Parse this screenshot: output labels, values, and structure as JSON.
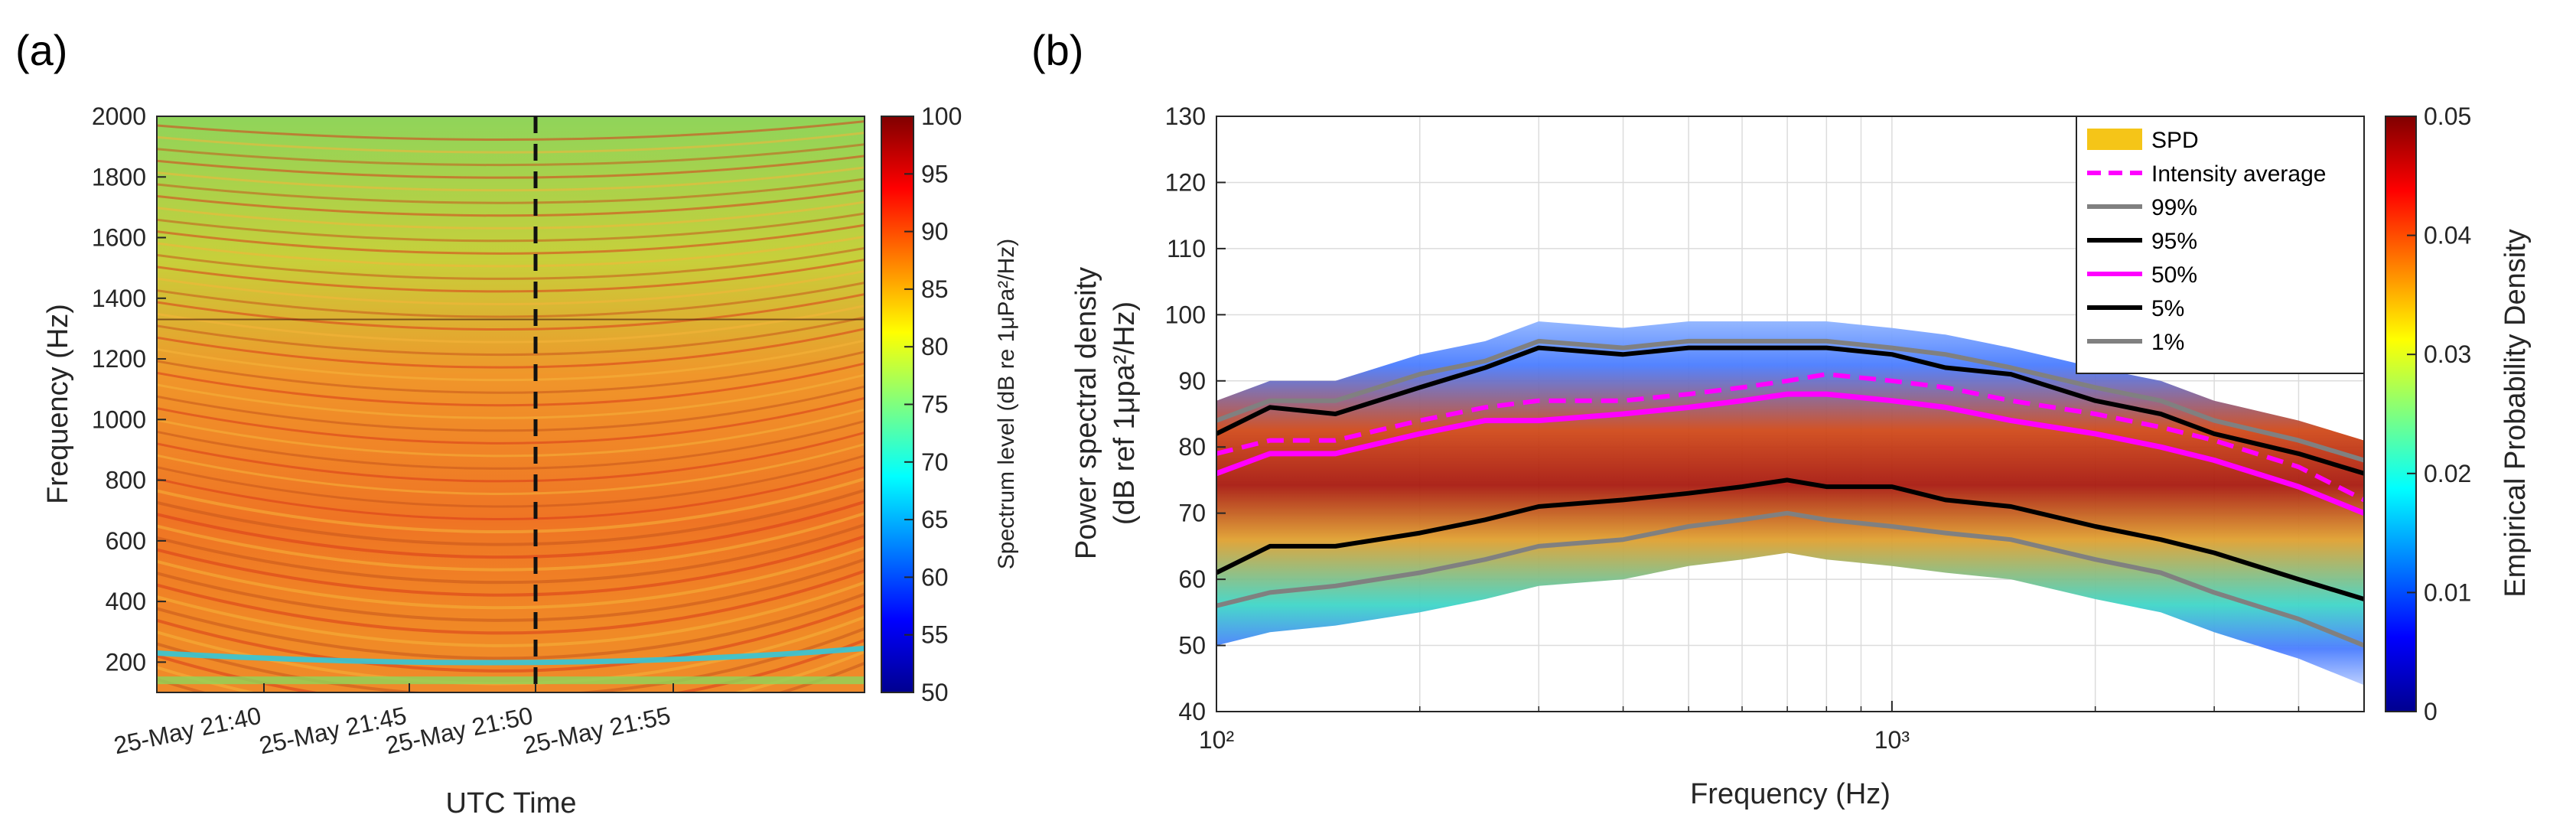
{
  "panels": {
    "a_label": "(a)",
    "b_label": "(b)"
  },
  "chart_data": [
    {
      "type": "heatmap",
      "title": "",
      "xlabel": "UTC Time",
      "ylabel": "Frequency (Hz)",
      "x_tick_labels": [
        "25-May 21:40",
        "25-May 21:45",
        "25-May 21:50",
        "25-May 21:55"
      ],
      "y_ticks": [
        200,
        400,
        600,
        800,
        1000,
        1200,
        1400,
        1600,
        1800,
        2000
      ],
      "ylim": [
        100,
        2000
      ],
      "dashed_vertical_line_at": "25-May 21:50",
      "colorbar": {
        "label": "Spectrum level (dB re 1μPa²/Hz)",
        "ticks": [
          50,
          55,
          60,
          65,
          70,
          75,
          80,
          85,
          90,
          95,
          100
        ],
        "range": [
          50,
          100
        ]
      },
      "description_levels": {
        "low_freq_band_db": 80,
        "mid_band_db": 90,
        "high_band_db": 80
      }
    },
    {
      "type": "line",
      "title": "",
      "xlabel": "Frequency (Hz)",
      "ylabel_line1": "Power spectral density",
      "ylabel_line2": "(dB ref 1μpa²/Hz)",
      "x_scale": "log",
      "xlim": [
        100,
        5000
      ],
      "x_tick_labels": [
        "10²",
        "10³"
      ],
      "ylim": [
        40,
        130
      ],
      "y_ticks": [
        40,
        50,
        60,
        70,
        80,
        90,
        100,
        110,
        120,
        130
      ],
      "grid": true,
      "legend_position": "top-right",
      "colorbar": {
        "label": "Empirical Probability Density",
        "ticks": [
          "0",
          "0.01",
          "0.02",
          "0.03",
          "0.04",
          "0.05"
        ],
        "range": [
          0,
          0.05
        ]
      },
      "legend": [
        {
          "label": "SPD",
          "color": "#f5c518",
          "style": "patch"
        },
        {
          "label": "Intensity average",
          "color": "#ff00ff",
          "style": "dashed"
        },
        {
          "label": "99%",
          "color": "#808080",
          "style": "solid"
        },
        {
          "label": "95%",
          "color": "#000000",
          "style": "solid"
        },
        {
          "label": "50%",
          "color": "#ff00ff",
          "style": "solid"
        },
        {
          "label": "5%",
          "color": "#000000",
          "style": "solid"
        },
        {
          "label": "1%",
          "color": "#808080",
          "style": "solid"
        }
      ],
      "x": [
        100,
        120,
        150,
        200,
        250,
        300,
        400,
        500,
        600,
        700,
        800,
        1000,
        1200,
        1500,
        2000,
        2500,
        3000,
        4000,
        5000
      ],
      "series": [
        {
          "name": "99%",
          "color": "#808080",
          "values": [
            84,
            87,
            87,
            91,
            93,
            96,
            95,
            96,
            96,
            96,
            96,
            95,
            94,
            92,
            89,
            87,
            84,
            81,
            78
          ]
        },
        {
          "name": "95%",
          "color": "#000000",
          "values": [
            82,
            86,
            85,
            89,
            92,
            95,
            94,
            95,
            95,
            95,
            95,
            94,
            92,
            91,
            87,
            85,
            82,
            79,
            76
          ]
        },
        {
          "name": "Intensity average",
          "color": "#ff00ff",
          "values": [
            79,
            81,
            81,
            84,
            86,
            87,
            87,
            88,
            89,
            90,
            91,
            90,
            89,
            87,
            85,
            83,
            81,
            77,
            72
          ]
        },
        {
          "name": "50%",
          "color": "#ff00ff",
          "values": [
            76,
            79,
            79,
            82,
            84,
            84,
            85,
            86,
            87,
            88,
            88,
            87,
            86,
            84,
            82,
            80,
            78,
            74,
            70
          ]
        },
        {
          "name": "5%",
          "color": "#000000",
          "values": [
            61,
            65,
            65,
            67,
            69,
            71,
            72,
            73,
            74,
            75,
            74,
            74,
            72,
            71,
            68,
            66,
            64,
            60,
            57
          ]
        },
        {
          "name": "1%",
          "color": "#808080",
          "values": [
            56,
            58,
            59,
            61,
            63,
            65,
            66,
            68,
            69,
            70,
            69,
            68,
            67,
            66,
            63,
            61,
            58,
            54,
            50
          ]
        }
      ]
    }
  ]
}
